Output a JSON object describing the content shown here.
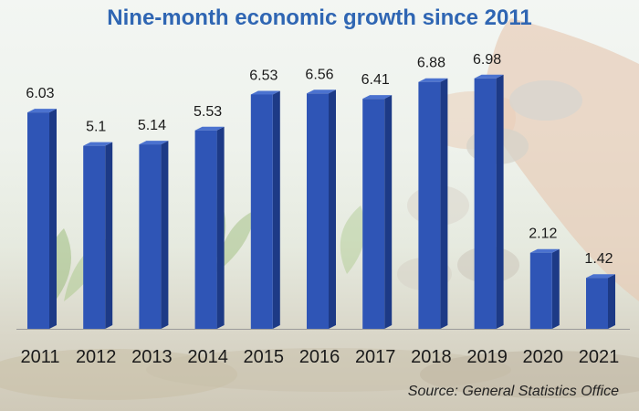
{
  "title": "Nine-month economic growth since 2011",
  "source": "Source: General Statistics Office",
  "colors": {
    "title": "#2f66b3",
    "bar_front": "#2f55b6",
    "bar_side": "#1d3a86",
    "bar_top": "#4b72cf"
  },
  "chart_data": {
    "type": "bar",
    "title": "Nine-month economic growth since 2011",
    "categories": [
      "2011",
      "2012",
      "2013",
      "2014",
      "2015",
      "2016",
      "2017",
      "2018",
      "2019",
      "2020",
      "2021"
    ],
    "values": [
      6.03,
      5.1,
      5.14,
      5.53,
      6.53,
      6.56,
      6.41,
      6.88,
      6.98,
      2.12,
      1.42
    ],
    "value_labels": [
      "6.03",
      "5.1",
      "5.14",
      "5.53",
      "6.53",
      "6.56",
      "6.41",
      "6.88",
      "6.98",
      "2.12",
      "1.42"
    ],
    "xlabel": "",
    "ylabel": "",
    "ylim": [
      0,
      7
    ],
    "grid": false,
    "legend": "none"
  }
}
